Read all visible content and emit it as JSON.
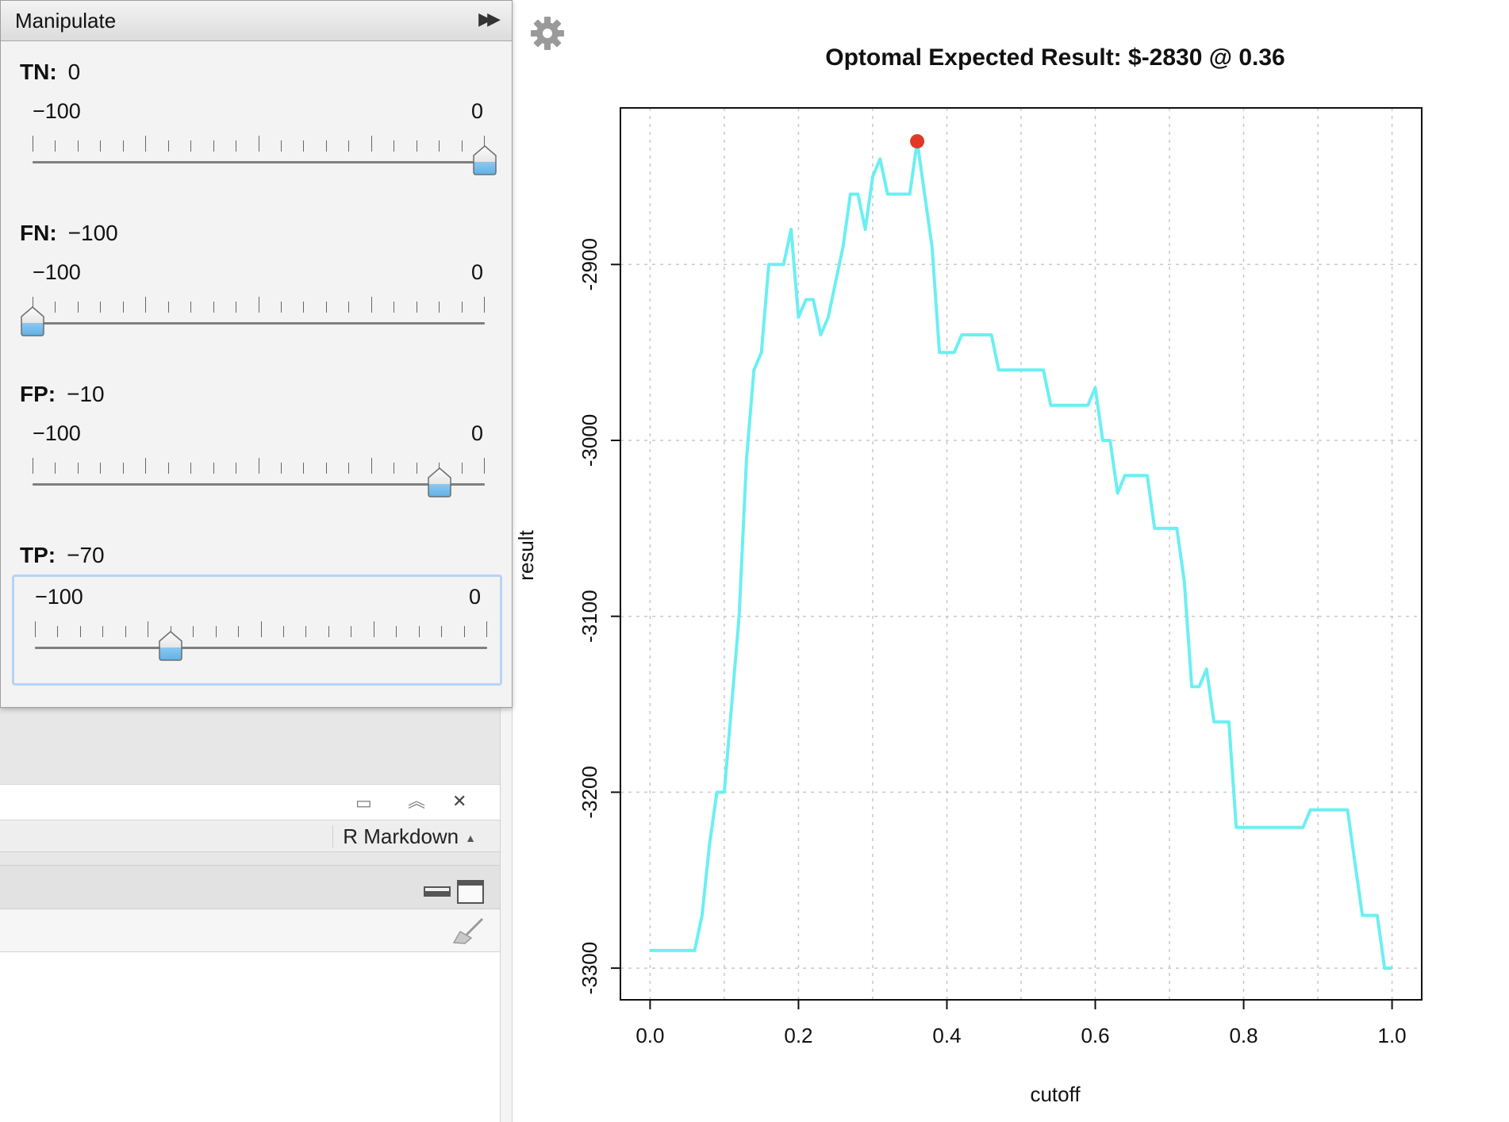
{
  "manipulate": {
    "title": "Manipulate",
    "collapse_glyph": "▶▶",
    "controls": [
      {
        "name": "TN:",
        "value": "0",
        "min_label": "−100",
        "max_label": "0",
        "min": -100,
        "max": 0,
        "current": 0,
        "focused": false
      },
      {
        "name": "FN:",
        "value": "−100",
        "min_label": "−100",
        "max_label": "0",
        "min": -100,
        "max": 0,
        "current": -100,
        "focused": false
      },
      {
        "name": "FP:",
        "value": "−10",
        "min_label": "−100",
        "max_label": "0",
        "min": -100,
        "max": 0,
        "current": -10,
        "focused": false
      },
      {
        "name": "TP:",
        "value": "−70",
        "min_label": "−100",
        "max_label": "0",
        "min": -100,
        "max": 0,
        "current": -70,
        "focused": true
      }
    ]
  },
  "editor": {
    "find_bar_icons": [
      "page-icon",
      "chevron-up-icon",
      "close-icon"
    ],
    "doc_mode": "R Markdown",
    "pane_icons": [
      "minimize-icon",
      "maximize-icon",
      "broom-icon"
    ]
  },
  "plot": {
    "settings_icon": "gear-icon"
  },
  "chart_data": {
    "type": "line",
    "title": "Optomal Expected Result: $-2830 @ 0.36",
    "xlabel": "cutoff",
    "ylabel": "result",
    "xlim": [
      -0.04,
      1.04
    ],
    "ylim": [
      -3318,
      -2811
    ],
    "x_ticks": [
      0.0,
      0.2,
      0.4,
      0.6,
      0.8,
      1.0
    ],
    "x_tick_labels": [
      "0.0",
      "0.2",
      "0.4",
      "0.6",
      "0.8",
      "1.0"
    ],
    "y_ticks": [
      -3300,
      -3200,
      -3100,
      -3000,
      -2900
    ],
    "y_tick_labels": [
      "-3300",
      "-3200",
      "-3100",
      "-3000",
      "-2900"
    ],
    "grid": true,
    "line_color": "#6beff2",
    "point_color": "#e03a26",
    "series": [
      {
        "x": [
          0.0,
          0.01,
          0.02,
          0.03,
          0.04,
          0.05,
          0.06,
          0.07,
          0.08,
          0.09,
          0.1,
          0.11,
          0.12,
          0.13,
          0.14,
          0.15,
          0.16,
          0.17,
          0.18,
          0.19,
          0.2,
          0.21,
          0.22,
          0.23,
          0.24,
          0.25,
          0.26,
          0.27,
          0.28,
          0.29,
          0.3,
          0.31,
          0.32,
          0.33,
          0.34,
          0.35,
          0.36,
          0.37,
          0.38,
          0.39,
          0.4,
          0.41,
          0.42,
          0.43,
          0.44,
          0.45,
          0.46,
          0.47,
          0.48,
          0.49,
          0.5,
          0.51,
          0.52,
          0.53,
          0.54,
          0.55,
          0.56,
          0.57,
          0.58,
          0.59,
          0.6,
          0.61,
          0.62,
          0.63,
          0.64,
          0.65,
          0.66,
          0.67,
          0.68,
          0.69,
          0.7,
          0.71,
          0.72,
          0.73,
          0.74,
          0.75,
          0.76,
          0.77,
          0.78,
          0.79,
          0.8,
          0.81,
          0.82,
          0.83,
          0.84,
          0.85,
          0.86,
          0.87,
          0.88,
          0.89,
          0.9,
          0.91,
          0.92,
          0.93,
          0.94,
          0.95,
          0.96,
          0.97,
          0.98,
          0.99,
          1.0
        ],
        "y": [
          -3290,
          -3290,
          -3290,
          -3290,
          -3290,
          -3290,
          -3290,
          -3270,
          -3230,
          -3200,
          -3200,
          -3150,
          -3100,
          -3010,
          -2960,
          -2950,
          -2900,
          -2900,
          -2900,
          -2880,
          -2930,
          -2920,
          -2920,
          -2940,
          -2930,
          -2910,
          -2890,
          -2860,
          -2860,
          -2880,
          -2850,
          -2840,
          -2860,
          -2860,
          -2860,
          -2860,
          -2830,
          -2860,
          -2890,
          -2950,
          -2950,
          -2950,
          -2940,
          -2940,
          -2940,
          -2940,
          -2940,
          -2960,
          -2960,
          -2960,
          -2960,
          -2960,
          -2960,
          -2960,
          -2980,
          -2980,
          -2980,
          -2980,
          -2980,
          -2980,
          -2970,
          -3000,
          -3000,
          -3030,
          -3020,
          -3020,
          -3020,
          -3020,
          -3050,
          -3050,
          -3050,
          -3050,
          -3080,
          -3140,
          -3140,
          -3130,
          -3160,
          -3160,
          -3160,
          -3220,
          -3220,
          -3220,
          -3220,
          -3220,
          -3220,
          -3220,
          -3220,
          -3220,
          -3220,
          -3210,
          -3210,
          -3210,
          -3210,
          -3210,
          -3210,
          -3240,
          -3270,
          -3270,
          -3270,
          -3300,
          -3300
        ]
      }
    ],
    "highlight_point": {
      "x": 0.36,
      "y": -2830
    }
  }
}
